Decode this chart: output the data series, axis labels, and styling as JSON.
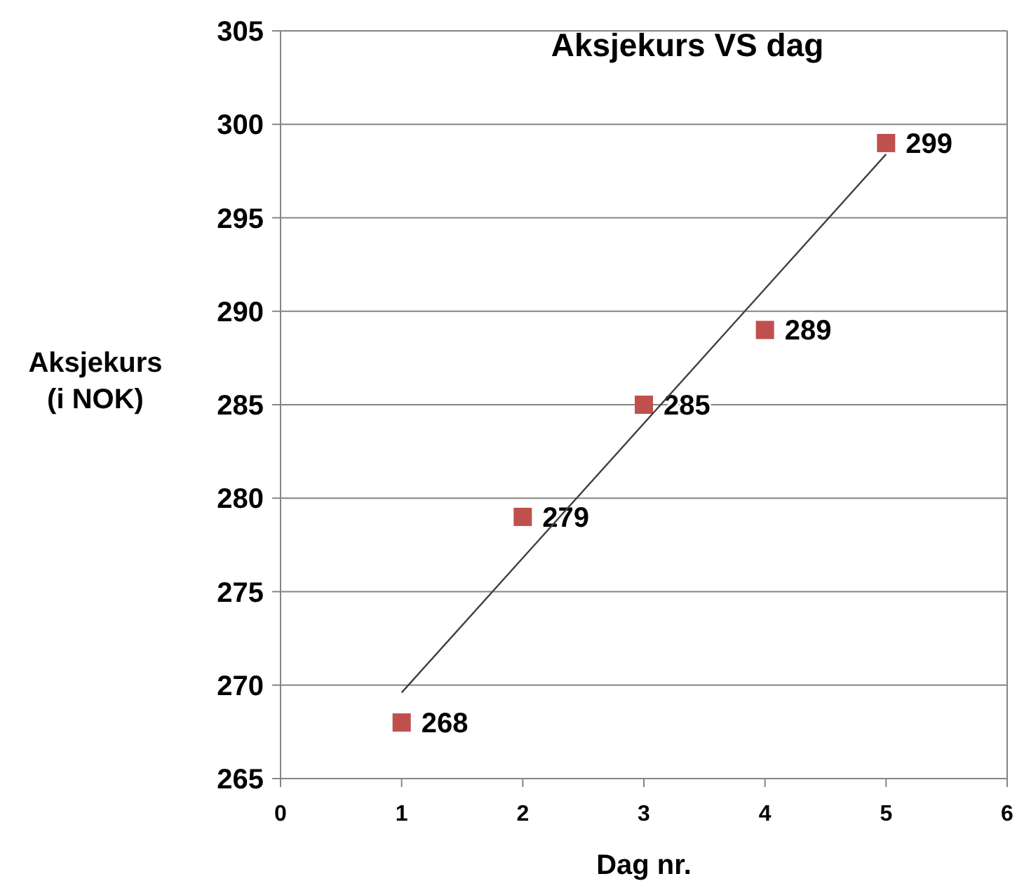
{
  "chart_data": {
    "type": "scatter",
    "title": "Aksjekurs  VS  dag",
    "xlabel": "Dag nr.",
    "ylabel": "Aksjekurs\n(i NOK)",
    "x": [
      1,
      2,
      3,
      4,
      5
    ],
    "series": [
      {
        "color": "#c0504d",
        "marker": "square",
        "values": [
          268,
          279,
          285,
          289,
          299
        ],
        "value_labels": [
          "268",
          "279",
          "285",
          "289",
          "299"
        ]
      },
      {
        "type": "line",
        "color": "#404040",
        "x": [
          1,
          5
        ],
        "values": [
          269.6,
          298.4
        ]
      }
    ],
    "xlim": [
      0,
      6
    ],
    "xticks": [
      0,
      1,
      2,
      3,
      4,
      5,
      6
    ],
    "ylim": [
      265,
      305
    ],
    "yticks": [
      265,
      270,
      275,
      280,
      285,
      290,
      295,
      300,
      305
    ],
    "grid": "y",
    "line_style": "solid"
  }
}
